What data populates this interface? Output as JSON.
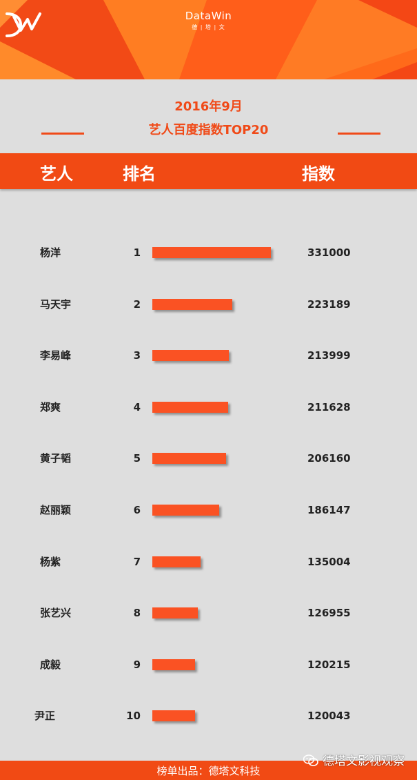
{
  "header": {
    "brand": "DataWin",
    "brand_sub": "德 | 塔 | 文",
    "colors": {
      "orange": "#ff6a1a",
      "red": "#f14a14",
      "background": "#dedede"
    }
  },
  "title": {
    "line1": "2016年9月",
    "line2": "艺人百度指数TOP20"
  },
  "columns": {
    "artist": "艺人",
    "rank": "排名",
    "index": "指数"
  },
  "chart_data": {
    "type": "bar",
    "orientation": "horizontal",
    "categories": [
      "杨洋",
      "马天宇",
      "李易峰",
      "郑爽",
      "黄子韬",
      "赵丽颖",
      "杨紫",
      "张艺兴",
      "成毅",
      "尹正"
    ],
    "ranks": [
      "1",
      "2",
      "3",
      "4",
      "5",
      "6",
      "7",
      "8",
      "9",
      "10"
    ],
    "values": [
      331000,
      223189,
      213999,
      211628,
      206160,
      186147,
      135004,
      126955,
      120215,
      120043
    ],
    "bar_color": "#fa5223"
  },
  "footer": {
    "text": "榜单出品：德塔文科技",
    "watermark": "德塔文影视观察",
    "watermark_icon": "wechat-icon"
  }
}
